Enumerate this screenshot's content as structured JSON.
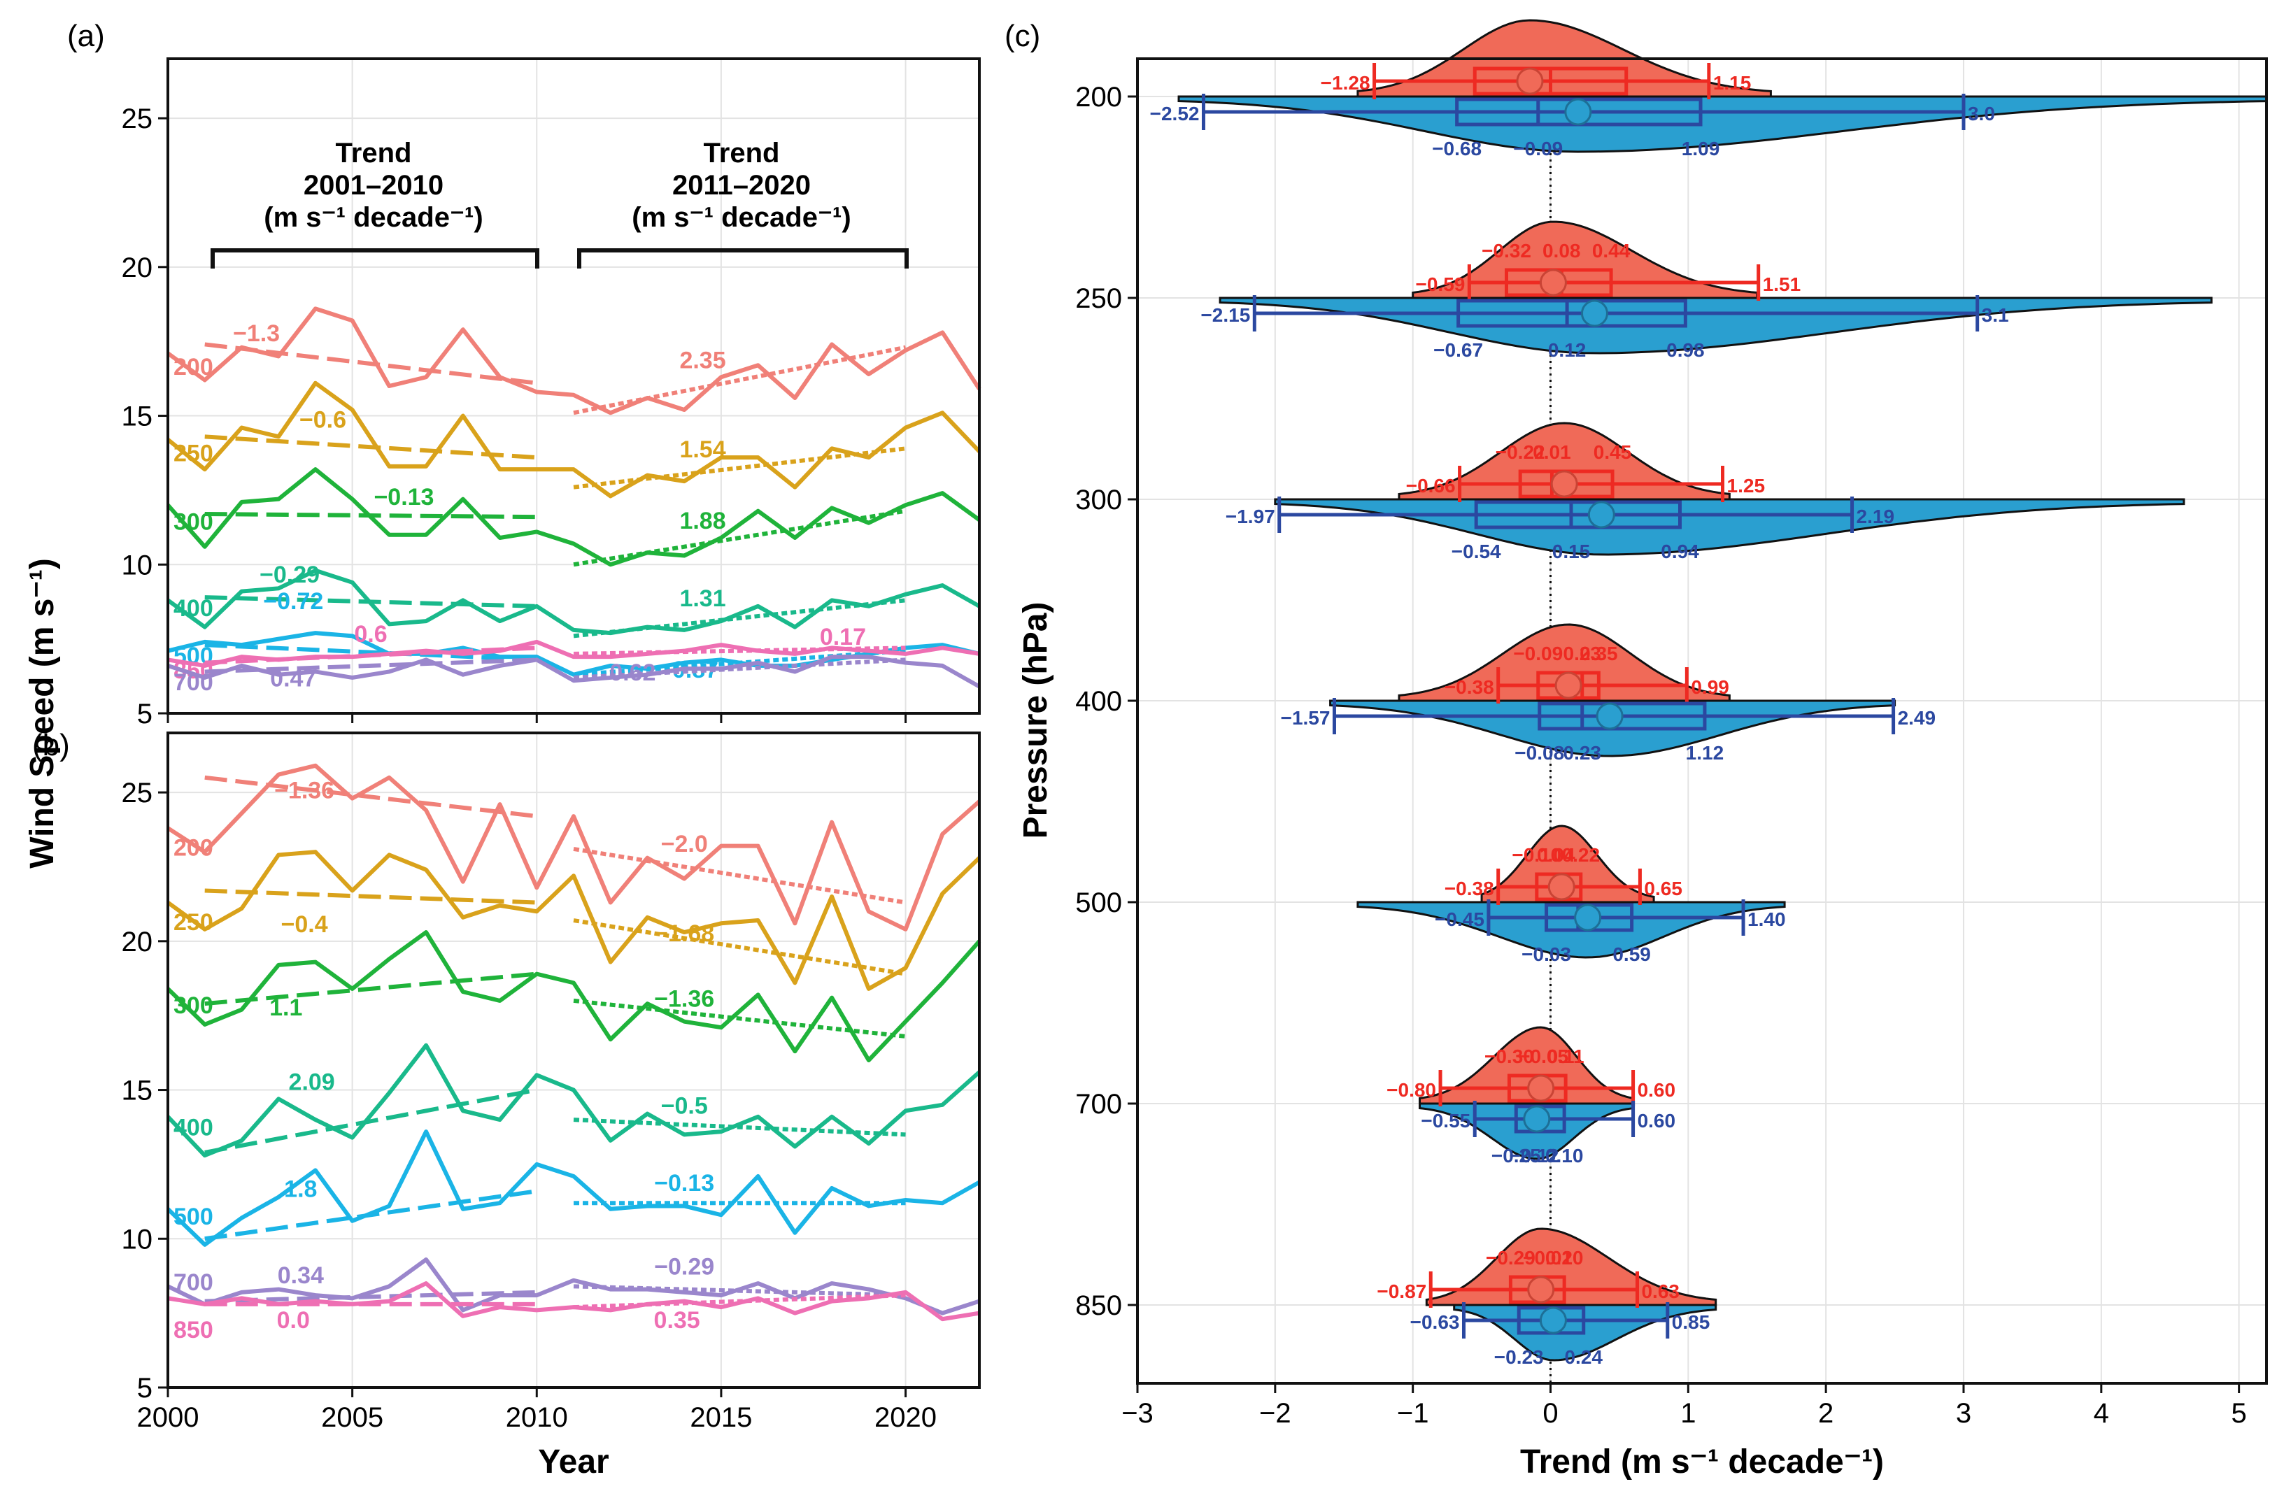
{
  "panel_labels": {
    "a": "(a)",
    "b": "(b)",
    "c": "(c)"
  },
  "left_axes": {
    "ylabel": "Wind Speed (m s⁻¹)",
    "xlabel": "Year",
    "x_ticks": [
      "2000",
      "2005",
      "2010",
      "2015",
      "2020"
    ],
    "y_ticks": [
      "5",
      "10",
      "15",
      "20",
      "25"
    ]
  },
  "trend_headers": [
    {
      "line1": "Trend",
      "line2": "2001–2010",
      "line3": "(m s⁻¹ decade⁻¹)"
    },
    {
      "line1": "Trend",
      "line2": "2011–2020",
      "line3": "(m s⁻¹ decade⁻¹)"
    }
  ],
  "chart_data": [
    {
      "type": "line",
      "panel": "(a)",
      "xlabel": "Year",
      "ylabel": "Wind Speed (m s⁻¹)",
      "xlim": [
        2000,
        2022
      ],
      "ylim": [
        5,
        27
      ],
      "x": [
        2000,
        2001,
        2002,
        2003,
        2004,
        2005,
        2006,
        2007,
        2008,
        2009,
        2010,
        2011,
        2012,
        2013,
        2014,
        2015,
        2016,
        2017,
        2018,
        2019,
        2020,
        2021,
        2022
      ],
      "series": [
        {
          "name": "200",
          "color": "#f08078",
          "values": [
            17.1,
            16.2,
            17.3,
            17.0,
            18.6,
            18.2,
            16.0,
            16.3,
            17.9,
            16.3,
            15.8,
            15.7,
            15.1,
            15.6,
            15.2,
            16.3,
            16.7,
            15.6,
            17.4,
            16.4,
            17.2,
            17.8,
            15.9
          ],
          "trend1": {
            "start": 17.4,
            "end": 16.1,
            "label": "−1.3"
          },
          "trend2": {
            "start": 15.1,
            "end": 17.3,
            "label": "2.35"
          }
        },
        {
          "name": "250",
          "color": "#d9a21b",
          "values": [
            14.2,
            13.2,
            14.6,
            14.3,
            16.1,
            15.2,
            13.3,
            13.3,
            15.0,
            13.2,
            13.2,
            13.2,
            12.3,
            13.0,
            12.8,
            13.6,
            13.6,
            12.6,
            13.9,
            13.6,
            14.6,
            15.1,
            13.8
          ],
          "trend1": {
            "start": 14.3,
            "end": 13.6,
            "label": "−0.6"
          },
          "trend2": {
            "start": 12.6,
            "end": 13.9,
            "label": "1.54"
          }
        },
        {
          "name": "300",
          "color": "#1fb33a",
          "values": [
            12.0,
            10.6,
            12.1,
            12.2,
            13.2,
            12.2,
            11.0,
            11.0,
            12.2,
            10.9,
            11.1,
            10.7,
            10.0,
            10.4,
            10.3,
            10.9,
            11.8,
            10.9,
            11.9,
            11.4,
            12.0,
            12.4,
            11.5
          ],
          "trend1": {
            "start": 11.7,
            "end": 11.6,
            "label": "−0.13"
          },
          "trend2": {
            "start": 10.0,
            "end": 11.8,
            "label": "1.88"
          }
        },
        {
          "name": "400",
          "color": "#19b98b",
          "values": [
            8.8,
            7.9,
            9.1,
            9.2,
            9.8,
            9.4,
            8.0,
            8.1,
            8.8,
            8.1,
            8.6,
            7.8,
            7.7,
            7.9,
            7.8,
            8.1,
            8.6,
            7.9,
            8.8,
            8.6,
            9.0,
            9.3,
            8.6
          ],
          "trend1": {
            "start": 8.9,
            "end": 8.6,
            "label": "−0.29"
          },
          "trend2": {
            "start": 7.6,
            "end": 8.8,
            "label": "1.31"
          }
        },
        {
          "name": "500",
          "color": "#1ab4e6",
          "values": [
            7.1,
            7.4,
            7.3,
            7.5,
            7.7,
            7.6,
            7.0,
            7.0,
            7.2,
            6.9,
            6.9,
            6.3,
            6.6,
            6.5,
            6.7,
            6.8,
            6.6,
            6.6,
            6.8,
            7.0,
            7.2,
            7.3,
            7.0
          ],
          "trend1": {
            "start": 7.3,
            "end": 6.8,
            "label": "−0.72"
          },
          "trend2": {
            "start": 6.3,
            "end": 7.1,
            "label": "0.87"
          }
        },
        {
          "name": "850",
          "color": "#ee6fb3",
          "values": [
            6.8,
            6.6,
            6.9,
            6.8,
            6.9,
            6.9,
            7.0,
            7.1,
            7.0,
            7.1,
            7.4,
            6.9,
            6.9,
            7.0,
            7.1,
            7.3,
            7.1,
            7.0,
            7.2,
            7.1,
            7.0,
            7.2,
            7.0
          ],
          "trend1": {
            "start": 6.7,
            "end": 7.2,
            "label": "0.6"
          },
          "trend2": {
            "start": 7.0,
            "end": 7.2,
            "label": "0.17"
          }
        },
        {
          "name": "700",
          "color": "#9a86cc",
          "values": [
            6.6,
            6.2,
            6.6,
            6.3,
            6.4,
            6.2,
            6.4,
            6.8,
            6.3,
            6.6,
            6.8,
            6.1,
            6.2,
            6.3,
            6.5,
            6.5,
            6.7,
            6.4,
            6.9,
            6.9,
            6.7,
            6.6,
            5.9
          ],
          "trend1": {
            "start": 6.4,
            "end": 6.8,
            "label": "0.47"
          },
          "trend2": {
            "start": 6.2,
            "end": 6.8,
            "label": "0.62"
          }
        }
      ]
    },
    {
      "type": "line",
      "panel": "(b)",
      "xlabel": "Year",
      "ylabel": "Wind Speed (m s⁻¹)",
      "xlim": [
        2000,
        2022
      ],
      "ylim": [
        5,
        27
      ],
      "x": [
        2000,
        2001,
        2002,
        2003,
        2004,
        2005,
        2006,
        2007,
        2008,
        2009,
        2010,
        2011,
        2012,
        2013,
        2014,
        2015,
        2016,
        2017,
        2018,
        2019,
        2020,
        2021,
        2022
      ],
      "series": [
        {
          "name": "200",
          "color": "#f08078",
          "values": [
            23.8,
            23.0,
            24.3,
            25.6,
            25.9,
            24.8,
            25.5,
            24.4,
            22.0,
            24.6,
            21.8,
            24.2,
            21.3,
            22.8,
            22.1,
            23.2,
            23.2,
            20.6,
            24.0,
            21.0,
            20.4,
            23.6,
            24.7
          ],
          "trend1": {
            "start": 25.5,
            "end": 24.2,
            "label": "−1.36"
          },
          "trend2": {
            "start": 23.1,
            "end": 21.3,
            "label": "−2.0"
          }
        },
        {
          "name": "250",
          "color": "#d9a21b",
          "values": [
            21.3,
            20.4,
            21.1,
            22.9,
            23.0,
            21.7,
            22.9,
            22.4,
            20.8,
            21.2,
            21.0,
            22.2,
            19.3,
            20.8,
            20.3,
            20.6,
            20.7,
            18.6,
            21.5,
            18.4,
            19.1,
            21.6,
            22.8
          ],
          "trend1": {
            "start": 21.7,
            "end": 21.3,
            "label": "−0.4"
          },
          "trend2": {
            "start": 20.7,
            "end": 18.9,
            "label": "−1.68"
          }
        },
        {
          "name": "300",
          "color": "#1fb33a",
          "values": [
            18.4,
            17.2,
            17.7,
            19.2,
            19.3,
            18.4,
            19.4,
            20.3,
            18.3,
            18.0,
            18.9,
            18.6,
            16.7,
            17.9,
            17.3,
            17.1,
            18.2,
            16.3,
            18.1,
            16.0,
            17.3,
            18.6,
            20.0
          ],
          "trend1": {
            "start": 17.9,
            "end": 18.9,
            "label": "1.1"
          },
          "trend2": {
            "start": 18.0,
            "end": 16.8,
            "label": "−1.36"
          }
        },
        {
          "name": "400",
          "color": "#19b98b",
          "values": [
            14.1,
            12.8,
            13.3,
            14.7,
            14.0,
            13.4,
            14.9,
            16.5,
            14.3,
            14.0,
            15.5,
            15.0,
            13.3,
            14.2,
            13.5,
            13.6,
            14.1,
            13.1,
            14.1,
            13.2,
            14.3,
            14.5,
            15.6
          ],
          "trend1": {
            "start": 12.9,
            "end": 15.0,
            "label": "2.09"
          },
          "trend2": {
            "start": 14.0,
            "end": 13.5,
            "label": "−0.5"
          }
        },
        {
          "name": "500",
          "color": "#1ab4e6",
          "values": [
            11.0,
            9.8,
            10.7,
            11.4,
            12.3,
            10.6,
            11.1,
            13.6,
            11.0,
            11.2,
            12.5,
            12.1,
            11.0,
            11.1,
            11.1,
            10.8,
            12.1,
            10.2,
            11.7,
            11.1,
            11.3,
            11.2,
            11.9
          ],
          "trend1": {
            "start": 10.0,
            "end": 11.6,
            "label": "1.8"
          },
          "trend2": {
            "start": 11.2,
            "end": 11.2,
            "label": "−0.13"
          }
        },
        {
          "name": "700",
          "color": "#9a86cc",
          "values": [
            8.4,
            7.8,
            8.2,
            8.3,
            8.1,
            8.0,
            8.4,
            9.3,
            7.6,
            8.1,
            8.1,
            8.6,
            8.3,
            8.3,
            8.2,
            8.1,
            8.5,
            8.0,
            8.5,
            8.3,
            8.0,
            7.5,
            7.9
          ],
          "trend1": {
            "start": 7.9,
            "end": 8.2,
            "label": "0.34"
          },
          "trend2": {
            "start": 8.4,
            "end": 8.1,
            "label": "−0.29"
          }
        },
        {
          "name": "850",
          "color": "#ee6fb3",
          "values": [
            8.0,
            7.8,
            8.0,
            7.8,
            7.9,
            7.8,
            7.9,
            8.5,
            7.4,
            7.7,
            7.6,
            7.7,
            7.6,
            7.8,
            7.9,
            7.7,
            8.0,
            7.5,
            7.9,
            8.0,
            8.2,
            7.3,
            7.5
          ],
          "trend1": {
            "start": 7.8,
            "end": 7.8,
            "label": "0.0"
          },
          "trend2": {
            "start": 7.7,
            "end": 8.1,
            "label": "0.35"
          }
        }
      ]
    },
    {
      "type": "violin",
      "panel": "(c)",
      "xlabel": "Trend (m s⁻¹ decade⁻¹)",
      "ylabel": "Pressure (hPa)",
      "xlim": [
        -3,
        5.2
      ],
      "x_ticks": [
        "−3",
        "−2",
        "−1",
        "0",
        "1",
        "2",
        "3",
        "4",
        "5"
      ],
      "levels": [
        {
          "level": "200",
          "red": {
            "mean": -0.15,
            "whisker": [
              "−1.28",
              "1.15"
            ],
            "whisker_v": [
              -1.28,
              1.15
            ],
            "box": [
              -0.55,
              0.55
            ],
            "median": 0.0,
            "labels": [],
            "range": [
              -1.4,
              1.6
            ]
          },
          "blue": {
            "mean": 0.2,
            "whisker": [
              "−2.52",
              "3.0"
            ],
            "whisker_v": [
              -2.52,
              3.0
            ],
            "box": [
              -0.68,
              1.09
            ],
            "median": -0.09,
            "labels": [
              "−0.68",
              "−0.09",
              "1.09"
            ],
            "range": [
              -2.7,
              5.2
            ]
          }
        },
        {
          "level": "250",
          "red": {
            "mean": 0.02,
            "whisker": [
              "−0.59",
              "1.51"
            ],
            "whisker_v": [
              -0.59,
              1.51
            ],
            "box": [
              -0.32,
              0.44
            ],
            "median": 0.08,
            "labels": [
              "−0.32",
              "0.08",
              "0.44"
            ],
            "range": [
              -1.0,
              1.5
            ]
          },
          "blue": {
            "mean": 0.32,
            "whisker": [
              "−2.15",
              "3.1"
            ],
            "whisker_v": [
              -2.15,
              3.1
            ],
            "box": [
              -0.67,
              0.98
            ],
            "median": 0.12,
            "labels": [
              "−0.67",
              "0.12",
              "0.98"
            ],
            "range": [
              -2.4,
              4.8
            ]
          }
        },
        {
          "level": "300",
          "red": {
            "mean": 0.1,
            "whisker": [
              "−0.66",
              "1.25"
            ],
            "whisker_v": [
              -0.66,
              1.25
            ],
            "box": [
              -0.22,
              0.45
            ],
            "median": 0.01,
            "labels": [
              "−0.22",
              "0.01",
              "0.45"
            ],
            "range": [
              -1.1,
              1.3
            ]
          },
          "blue": {
            "mean": 0.37,
            "whisker": [
              "−1.97",
              "2.19"
            ],
            "whisker_v": [
              -1.97,
              2.19
            ],
            "box": [
              -0.54,
              0.94
            ],
            "median": 0.15,
            "labels": [
              "−0.54",
              "0.15",
              "0.94"
            ],
            "range": [
              -2.0,
              4.6
            ]
          }
        },
        {
          "level": "400",
          "red": {
            "mean": 0.13,
            "whisker": [
              "−0.38",
              "0.99"
            ],
            "whisker_v": [
              -0.38,
              0.99
            ],
            "box": [
              -0.09,
              0.35
            ],
            "median": 0.23,
            "labels": [
              "−0.09",
              "0.23",
              "0.35"
            ],
            "range": [
              -1.1,
              1.3
            ]
          },
          "blue": {
            "mean": 0.43,
            "whisker": [
              "−1.57",
              "2.49"
            ],
            "whisker_v": [
              -1.57,
              2.49
            ],
            "box": [
              -0.08,
              1.12
            ],
            "median": 0.23,
            "labels": [
              "−0.08",
              "0.23",
              "1.12"
            ],
            "range": [
              -1.6,
              2.5
            ]
          }
        },
        {
          "level": "500",
          "red": {
            "mean": 0.08,
            "whisker": [
              "−0.38",
              "0.65"
            ],
            "whisker_v": [
              -0.38,
              0.65
            ],
            "box": [
              -0.1,
              0.22
            ],
            "median": 0.04,
            "labels": [
              "−0.10",
              "0.04",
              "0.22"
            ],
            "range": [
              -0.5,
              0.75
            ]
          },
          "blue": {
            "mean": 0.27,
            "whisker": [
              "−0.45",
              "1.40"
            ],
            "whisker_v": [
              -0.45,
              1.4
            ],
            "box": [
              -0.03,
              0.59
            ],
            "median": 0.2,
            "labels": [
              "−0.03",
              "0.59"
            ],
            "range": [
              -1.4,
              1.7
            ]
          }
        },
        {
          "level": "700",
          "red": {
            "mean": -0.07,
            "whisker": [
              "−0.80",
              "0.60"
            ],
            "whisker_v": [
              -0.8,
              0.6
            ],
            "box": [
              -0.3,
              0.11
            ],
            "median": -0.05,
            "labels": [
              "−0.30",
              "−0.05",
              "0.11"
            ],
            "range": [
              -0.95,
              0.6
            ]
          },
          "blue": {
            "mean": -0.1,
            "whisker": [
              "−0.55",
              "0.60"
            ],
            "whisker_v": [
              -0.55,
              0.6
            ],
            "box": [
              -0.25,
              0.1
            ],
            "median": -0.12,
            "labels": [
              "−0.25",
              "−0.12",
              "0.10"
            ],
            "range": [
              -0.95,
              0.6
            ]
          }
        },
        {
          "level": "850",
          "red": {
            "mean": -0.07,
            "whisker": [
              "−0.87",
              "0.63"
            ],
            "whisker_v": [
              -0.87,
              0.63
            ],
            "box": [
              -0.29,
              0.1
            ],
            "median": -0.02,
            "labels": [
              "−0.29",
              "−0.02",
              "0.10"
            ],
            "range": [
              -0.9,
              1.2
            ]
          },
          "blue": {
            "mean": 0.02,
            "whisker": [
              "−0.63",
              "0.85"
            ],
            "whisker_v": [
              -0.63,
              0.85
            ],
            "box": [
              -0.23,
              0.24
            ],
            "median": 0.0,
            "labels": [
              "−0.23",
              "0.24"
            ],
            "range": [
              -0.7,
              1.2
            ]
          }
        }
      ]
    }
  ]
}
